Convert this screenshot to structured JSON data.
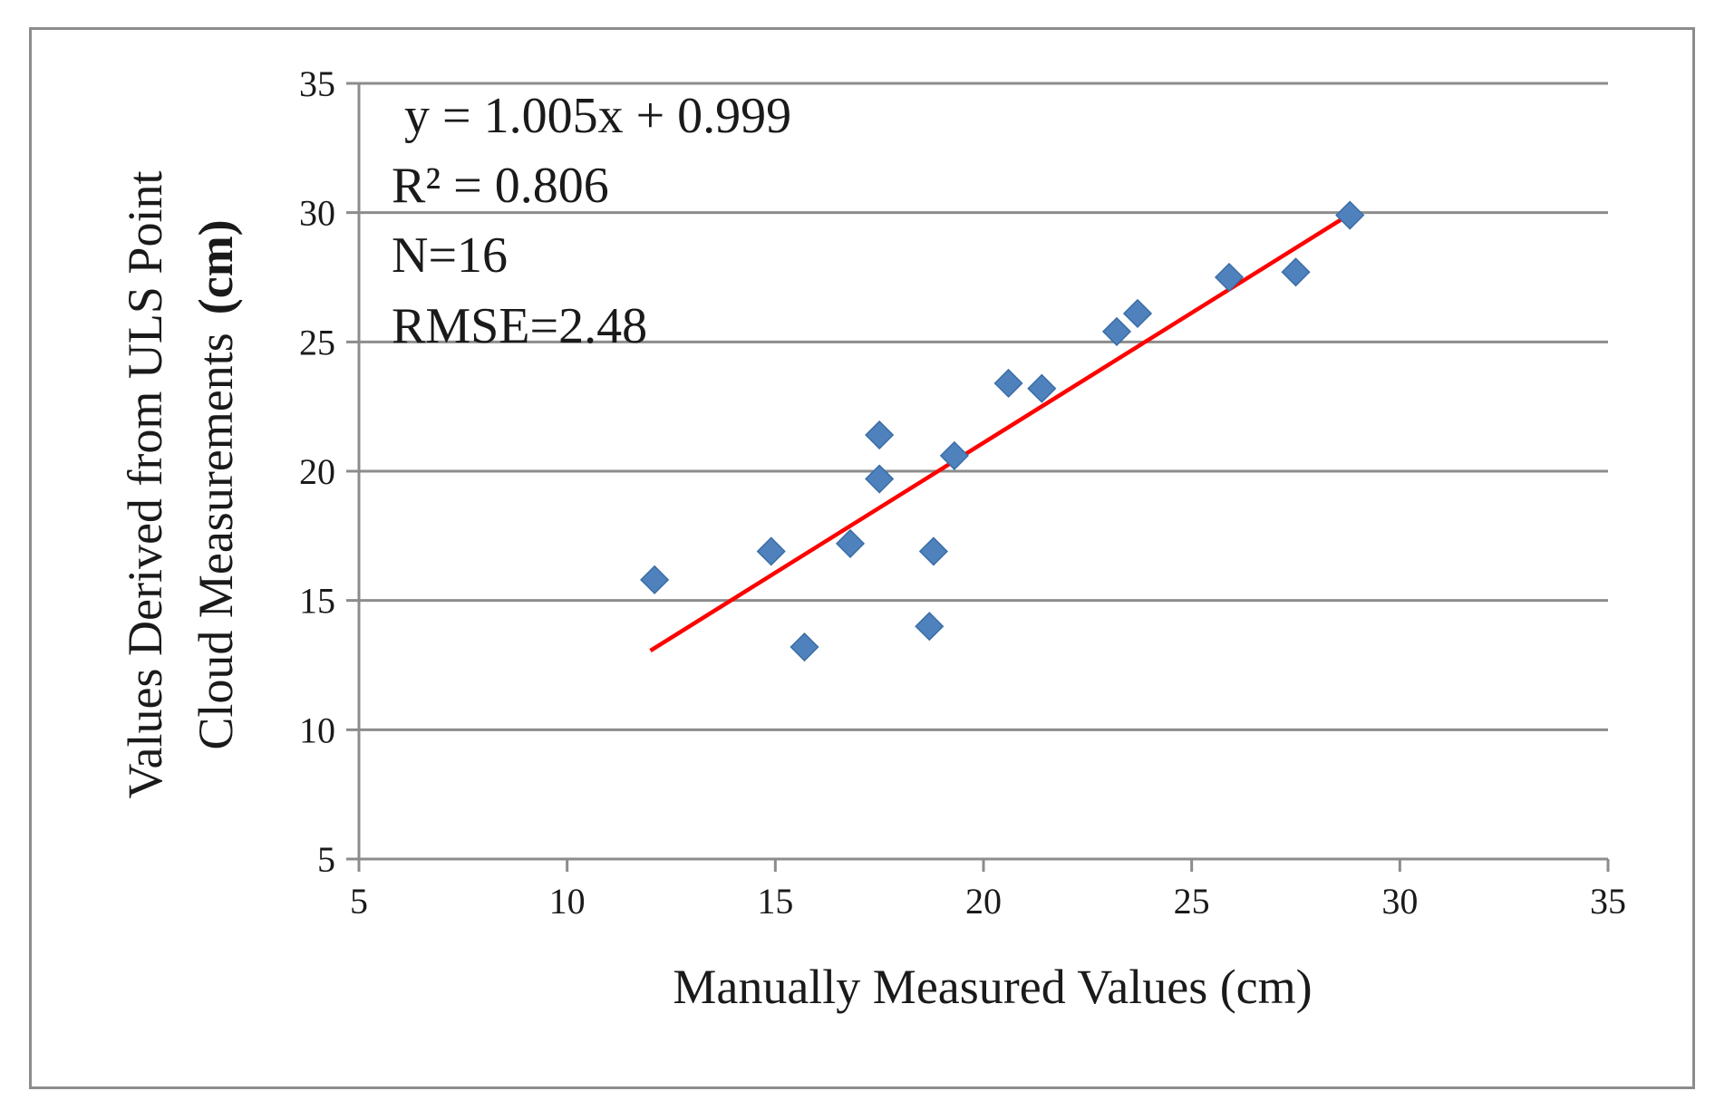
{
  "chart_data": {
    "type": "scatter",
    "xlabel": "Manually  Measured  Values  (cm)",
    "ylabel_line1": "Values Derived from ULS Point",
    "ylabel_line2_main": "Cloud Measurements",
    "ylabel_line2_unit": "(cm)",
    "xlim": [
      5,
      35
    ],
    "ylim": [
      5,
      35
    ],
    "xticks": [
      "5",
      "10",
      "15",
      "20",
      "25",
      "30",
      "35"
    ],
    "yticks": [
      "5",
      "10",
      "15",
      "20",
      "25",
      "30",
      "35"
    ],
    "grid": "horizontal",
    "annotations": {
      "equation": "y = 1.005x + 0.999",
      "r2": "R² = 0.806",
      "n": "N=16",
      "rmse": "RMSE=2.48"
    },
    "series": [
      {
        "marker": "diamond",
        "color": "#4f81bd",
        "points": [
          {
            "x": 12.1,
            "y": 15.8
          },
          {
            "x": 14.9,
            "y": 16.9
          },
          {
            "x": 15.7,
            "y": 13.2
          },
          {
            "x": 16.8,
            "y": 17.2
          },
          {
            "x": 17.5,
            "y": 21.4
          },
          {
            "x": 17.5,
            "y": 19.7
          },
          {
            "x": 18.7,
            "y": 14.0
          },
          {
            "x": 18.8,
            "y": 16.9
          },
          {
            "x": 19.3,
            "y": 20.6
          },
          {
            "x": 20.6,
            "y": 23.4
          },
          {
            "x": 21.4,
            "y": 23.2
          },
          {
            "x": 23.2,
            "y": 25.4
          },
          {
            "x": 23.7,
            "y": 26.1
          },
          {
            "x": 25.9,
            "y": 27.5
          },
          {
            "x": 27.5,
            "y": 27.7
          },
          {
            "x": 28.8,
            "y": 29.9
          }
        ]
      }
    ],
    "trendline": {
      "color": "#ff0000",
      "slope": 1.005,
      "intercept": 0.999,
      "x_start": 12.0,
      "x_end": 28.8
    }
  }
}
